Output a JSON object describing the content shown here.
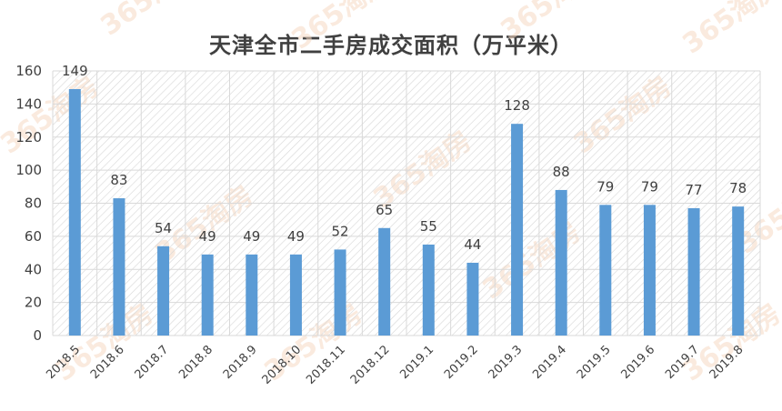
{
  "watermark": "365淘房",
  "chart_data": {
    "type": "bar",
    "title": "天津全市二手房成交面积（万平米）",
    "xlabel": "",
    "ylabel": "",
    "categories": [
      "2018.5",
      "2018.6",
      "2018.7",
      "2018.8",
      "2018.9",
      "2018.10",
      "2018.11",
      "2018.12",
      "2019.1",
      "2019.2",
      "2019.3",
      "2019.4",
      "2019.5",
      "2019.6",
      "2019.7",
      "2019.8"
    ],
    "values": [
      149,
      83,
      54,
      49,
      49,
      49,
      52,
      65,
      55,
      44,
      128,
      88,
      79,
      79,
      77,
      78
    ],
    "ylim": [
      0,
      160
    ],
    "yticks": [
      0,
      20,
      40,
      60,
      80,
      100,
      120,
      140,
      160
    ],
    "grid": true,
    "legend": "none",
    "colors": {
      "bar": "#5b9bd5",
      "grid": "#d9d9d9",
      "hatch": "#d0d0d0",
      "text": "#404040"
    }
  }
}
